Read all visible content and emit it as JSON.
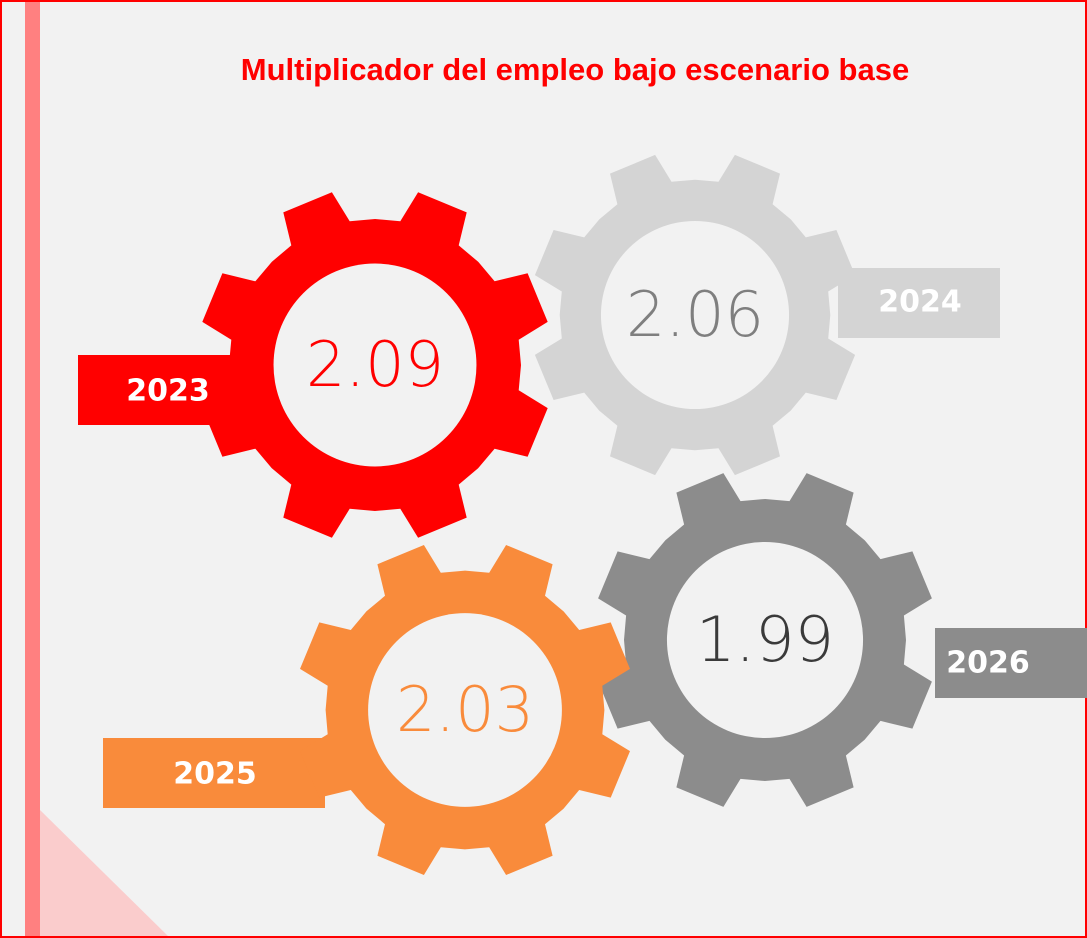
{
  "title": "Multiplicador del empleo bajo escenario base",
  "items": [
    {
      "year": "2024",
      "value": 2.06,
      "color": "#d4d4d4",
      "value_color": "#7f7f7f"
    },
    {
      "year": "2023",
      "value": 2.09,
      "color": "#ff0000",
      "value_color": "#ff0000"
    },
    {
      "year": "2026",
      "value": 1.99,
      "color": "#8c8c8c",
      "value_color": "#3a3a3a"
    },
    {
      "year": "2025",
      "value": 2.03,
      "color": "#f98b3b",
      "value_color": "#f98b3b"
    }
  ]
}
